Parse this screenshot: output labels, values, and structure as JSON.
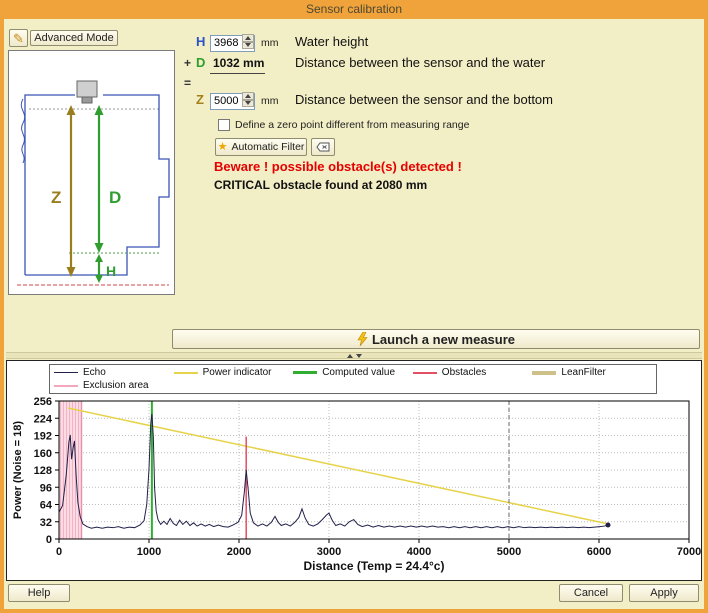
{
  "window": {
    "title": "Sensor calibration"
  },
  "toolbar": {
    "advanced_mode_label": "Advanced Mode"
  },
  "form": {
    "h": {
      "label": "H",
      "value": "3968",
      "unit": "mm",
      "desc": "Water height"
    },
    "d": {
      "prefix": "+",
      "label": "D",
      "value": "1032 mm",
      "desc": "Distance between the sensor and the water"
    },
    "equals_sign": "=",
    "z": {
      "label": "Z",
      "value": "5000",
      "unit": "mm",
      "desc": "Distance between the sensor and the bottom"
    }
  },
  "diagram": {
    "z_label": "Z",
    "d_label": "D",
    "h_label": "H"
  },
  "options": {
    "zero_point_label": "Define a zero point different from measuring range",
    "automatic_filter_label": "Automatic Filter"
  },
  "alerts": {
    "warning": "Beware ! possible obstacle(s) detected !",
    "critical": "CRITICAL obstacle found at 2080 mm"
  },
  "measure": {
    "launch_label": "Launch a new measure"
  },
  "footer": {
    "help": "Help",
    "cancel": "Cancel",
    "apply": "Apply"
  },
  "colors": {
    "frame": "#efa33a",
    "background": "#f2eec5",
    "h_blue": "#2a52c8",
    "d_green": "#2f9e2f",
    "z_olive": "#a2801a",
    "warning_red": "#e60000"
  },
  "chart_data": {
    "type": "line",
    "title": "",
    "xlabel": "Distance (Temp = 24.4°c)",
    "ylabel": "Power (Noise = 18)",
    "xlim": [
      0,
      7000
    ],
    "ylim": [
      0,
      256
    ],
    "xticks": [
      0,
      1000,
      2000,
      3000,
      4000,
      5000,
      6000,
      7000
    ],
    "yticks": [
      0,
      32,
      64,
      96,
      128,
      160,
      192,
      224,
      256
    ],
    "grid": "dotted",
    "legend_position": "top",
    "legend": [
      {
        "label": "Echo",
        "color": "#20204a",
        "width": 1
      },
      {
        "label": "Power indicator",
        "color": "#e6d34a",
        "width": 2
      },
      {
        "label": "Computed value",
        "color": "#2fae2f",
        "width": 3
      },
      {
        "label": "Obstacles",
        "color": "#e34f63",
        "width": 2
      },
      {
        "label": "LeanFilter",
        "color": "#cfc08a",
        "width": 4
      },
      {
        "label": "Exclusion area",
        "color": "#f2a7bc",
        "width": 2
      }
    ],
    "series": {
      "echo": {
        "color": "#20204a",
        "points": [
          [
            0,
            50
          ],
          [
            40,
            62
          ],
          [
            80,
            118
          ],
          [
            110,
            180
          ],
          [
            125,
            193
          ],
          [
            140,
            148
          ],
          [
            158,
            170
          ],
          [
            172,
            182
          ],
          [
            190,
            118
          ],
          [
            210,
            68
          ],
          [
            235,
            42
          ],
          [
            265,
            28
          ],
          [
            310,
            23
          ],
          [
            360,
            20
          ],
          [
            420,
            22
          ],
          [
            480,
            20
          ],
          [
            540,
            22
          ],
          [
            600,
            21
          ],
          [
            660,
            23
          ],
          [
            720,
            20
          ],
          [
            780,
            22
          ],
          [
            840,
            21
          ],
          [
            900,
            26
          ],
          [
            945,
            34
          ],
          [
            975,
            64
          ],
          [
            1000,
            130
          ],
          [
            1020,
            215
          ],
          [
            1032,
            232
          ],
          [
            1048,
            190
          ],
          [
            1062,
            95
          ],
          [
            1080,
            52
          ],
          [
            1100,
            36
          ],
          [
            1130,
            27
          ],
          [
            1165,
            33
          ],
          [
            1200,
            27
          ],
          [
            1235,
            38
          ],
          [
            1270,
            29
          ],
          [
            1305,
            25
          ],
          [
            1340,
            35
          ],
          [
            1375,
            27
          ],
          [
            1415,
            33
          ],
          [
            1455,
            25
          ],
          [
            1495,
            30
          ],
          [
            1535,
            24
          ],
          [
            1580,
            28
          ],
          [
            1625,
            24
          ],
          [
            1670,
            27
          ],
          [
            1720,
            23
          ],
          [
            1770,
            26
          ],
          [
            1825,
            23
          ],
          [
            1880,
            22
          ],
          [
            1935,
            26
          ],
          [
            1990,
            31
          ],
          [
            2030,
            44
          ],
          [
            2060,
            88
          ],
          [
            2080,
            128
          ],
          [
            2102,
            92
          ],
          [
            2125,
            48
          ],
          [
            2160,
            30
          ],
          [
            2210,
            24
          ],
          [
            2260,
            28
          ],
          [
            2310,
            24
          ],
          [
            2360,
            31
          ],
          [
            2400,
            42
          ],
          [
            2435,
            31
          ],
          [
            2470,
            25
          ],
          [
            2520,
            28
          ],
          [
            2570,
            24
          ],
          [
            2620,
            31
          ],
          [
            2665,
            40
          ],
          [
            2700,
            56
          ],
          [
            2735,
            39
          ],
          [
            2775,
            27
          ],
          [
            2825,
            24
          ],
          [
            2875,
            28
          ],
          [
            2925,
            36
          ],
          [
            2975,
            45
          ],
          [
            3000,
            48
          ],
          [
            3035,
            35
          ],
          [
            3075,
            25
          ],
          [
            3125,
            28
          ],
          [
            3175,
            24
          ],
          [
            3225,
            32
          ],
          [
            3275,
            36
          ],
          [
            3320,
            27
          ],
          [
            3370,
            23
          ],
          [
            3430,
            26
          ],
          [
            3490,
            22
          ],
          [
            3550,
            25
          ],
          [
            3610,
            22
          ],
          [
            3670,
            24
          ],
          [
            3730,
            22
          ],
          [
            3790,
            24
          ],
          [
            3850,
            22
          ],
          [
            3910,
            24
          ],
          [
            3970,
            22
          ],
          [
            4030,
            24
          ],
          [
            4090,
            22
          ],
          [
            4150,
            24
          ],
          [
            4210,
            22
          ],
          [
            4270,
            23
          ],
          [
            4330,
            21
          ],
          [
            4390,
            23
          ],
          [
            4450,
            21
          ],
          [
            4510,
            23
          ],
          [
            4570,
            21
          ],
          [
            4630,
            23
          ],
          [
            4690,
            21
          ],
          [
            4750,
            23
          ],
          [
            4810,
            21
          ],
          [
            4870,
            23
          ],
          [
            4930,
            21
          ],
          [
            4990,
            23
          ],
          [
            5050,
            21
          ],
          [
            5110,
            23
          ],
          [
            5170,
            21
          ],
          [
            5230,
            22
          ],
          [
            5290,
            21
          ],
          [
            5350,
            22
          ],
          [
            5410,
            21
          ],
          [
            5470,
            22
          ],
          [
            5530,
            21
          ],
          [
            5590,
            22
          ],
          [
            5650,
            21
          ],
          [
            5710,
            22
          ],
          [
            5770,
            21
          ],
          [
            5830,
            22
          ],
          [
            5890,
            21
          ],
          [
            5950,
            22
          ],
          [
            6010,
            23
          ],
          [
            6060,
            24
          ],
          [
            6100,
            26
          ]
        ]
      },
      "power_indicator": {
        "color": "#e6d34a",
        "points": [
          [
            100,
            243
          ],
          [
            6100,
            28
          ]
        ]
      },
      "computed_value": {
        "color": "#2fae2f",
        "x": 1032
      },
      "obstacles": {
        "color": "#e34f63",
        "x": 2080,
        "y_top": 190
      },
      "lean_filter": {
        "color": "#cfc08a"
      },
      "exclusion_area": {
        "color": "#f2a7bc",
        "fill": "#fbdce4",
        "x_range": [
          0,
          250
        ]
      },
      "measuring_range_marker": {
        "color": "#808080",
        "x": 5000,
        "dash": true
      }
    }
  }
}
